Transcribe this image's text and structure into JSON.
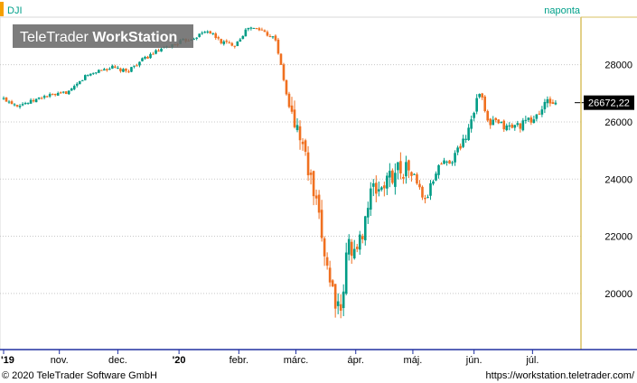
{
  "header": {
    "symbol": "DJI",
    "period": "naponta",
    "watermark_brand": "TeleTrader",
    "watermark_product": "WorkStation"
  },
  "footer": {
    "copyright": "© 2020 TeleTrader Software GmbH",
    "url": "https://workstation.teletrader.com/"
  },
  "last_price_label": "26672,22",
  "colors": {
    "up": "#009c86",
    "down": "#f07020",
    "teal_text": "#00a08a",
    "axis_line": "#d8c060",
    "grid": "#c8c8c8",
    "baseline": "#2030a0"
  },
  "chart_data": {
    "type": "candlestick",
    "x_labels": [
      {
        "label": "'19",
        "week": 0
      },
      {
        "label": "nov.",
        "week": 4.1
      },
      {
        "label": "dec.",
        "week": 8.4
      },
      {
        "label": "'20",
        "week": 12.9
      },
      {
        "label": "febr.",
        "week": 17.3
      },
      {
        "label": "márc.",
        "week": 21.5
      },
      {
        "label": "ápr.",
        "week": 25.9
      },
      {
        "label": "máj.",
        "week": 30.1
      },
      {
        "label": "jún.",
        "week": 34.6
      },
      {
        "label": "júl.",
        "week": 38.9
      }
    ],
    "y_ticks": [
      20000,
      22000,
      24000,
      26000,
      28000
    ],
    "y_tick_labels": [
      "20000",
      "22000",
      "24000",
      "26000",
      "28000"
    ],
    "ylim": [
      18100,
      29600
    ],
    "xlim": [
      0,
      42
    ],
    "weekly_closes": [
      [
        0,
        26800
      ],
      [
        1,
        26600
      ],
      [
        2,
        26700
      ],
      [
        3,
        26900
      ],
      [
        4,
        26950
      ],
      [
        5,
        27100
      ],
      [
        6,
        27600
      ],
      [
        7,
        27800
      ],
      [
        8,
        27900
      ],
      [
        9,
        27750
      ],
      [
        10,
        28100
      ],
      [
        11,
        28400
      ],
      [
        12,
        28600
      ],
      [
        13,
        28800
      ],
      [
        14,
        28950
      ],
      [
        15,
        29200
      ],
      [
        16,
        28800
      ],
      [
        17,
        28700
      ],
      [
        18,
        29300
      ],
      [
        19,
        29200
      ],
      [
        20,
        28900
      ],
      [
        21,
        26500
      ],
      [
        22,
        25200
      ],
      [
        23,
        23000
      ],
      [
        24,
        20500
      ],
      [
        24.8,
        19100
      ],
      [
        25.3,
        21800
      ],
      [
        26,
        21400
      ],
      [
        27,
        23500
      ],
      [
        28,
        23800
      ],
      [
        29,
        24400
      ],
      [
        30,
        24300
      ],
      [
        31,
        23200
      ],
      [
        32,
        24500
      ],
      [
        33,
        24700
      ],
      [
        34,
        25500
      ],
      [
        35,
        27100
      ],
      [
        35.7,
        25800
      ],
      [
        36,
        26000
      ],
      [
        37,
        25800
      ],
      [
        38,
        25900
      ],
      [
        39,
        26100
      ],
      [
        40,
        26700
      ],
      [
        40.7,
        26672
      ]
    ],
    "last_value": 26672.22
  }
}
